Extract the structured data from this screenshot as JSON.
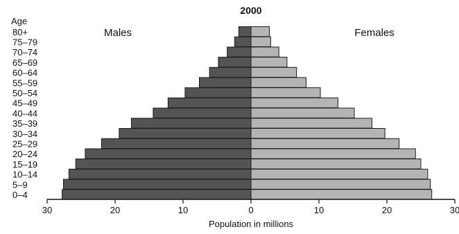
{
  "chart_data": {
    "type": "bar",
    "title": "2000",
    "age_axis_label": "Age",
    "males_label": "Males",
    "females_label": "Females",
    "xlabel": "Population in millions",
    "categories": [
      "0–4",
      "5–9",
      "10–14",
      "15–19",
      "20–24",
      "25–29",
      "30–34",
      "35–39",
      "40–44",
      "45–49",
      "50–54",
      "55–59",
      "60–64",
      "65–69",
      "70–74",
      "75–79",
      "80+"
    ],
    "series": [
      {
        "name": "Males",
        "values": [
          27.8,
          27.6,
          26.8,
          25.8,
          24.4,
          22.0,
          19.4,
          17.6,
          14.4,
          12.2,
          9.7,
          7.6,
          6.1,
          4.8,
          3.5,
          2.4,
          1.8
        ]
      },
      {
        "name": "Females",
        "values": [
          26.6,
          26.4,
          26.0,
          25.0,
          24.2,
          21.8,
          19.7,
          17.8,
          15.2,
          12.8,
          10.2,
          8.1,
          6.7,
          5.3,
          4.1,
          2.9,
          2.7
        ]
      }
    ],
    "xlim": [
      -30,
      30
    ],
    "x_ticks": [
      "30",
      "20",
      "10",
      "0",
      "10",
      "20",
      "30"
    ],
    "colors": {
      "males": "#545454",
      "females": "#b4b4b4",
      "edge": "#1a1a1a"
    },
    "grid": false
  }
}
